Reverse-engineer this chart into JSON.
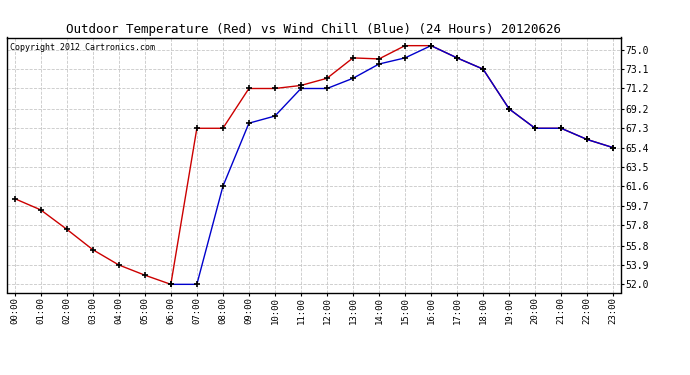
{
  "title": "Outdoor Temperature (Red) vs Wind Chill (Blue) (24 Hours) 20120626",
  "copyright": "Copyright 2012 Cartronics.com",
  "background_color": "#ffffff",
  "plot_bg_color": "#ffffff",
  "grid_color": "#c8c8c8",
  "red_color": "#cc0000",
  "blue_color": "#0000cc",
  "hours": [
    0,
    1,
    2,
    3,
    4,
    5,
    6,
    7,
    8,
    9,
    10,
    11,
    12,
    13,
    14,
    15,
    16,
    17,
    18,
    19,
    20,
    21,
    22,
    23
  ],
  "temp_red": [
    60.4,
    59.3,
    57.4,
    55.4,
    53.9,
    52.9,
    52.0,
    67.3,
    67.3,
    71.2,
    71.2,
    71.5,
    72.2,
    74.2,
    74.1,
    75.4,
    75.4,
    74.2,
    73.1,
    69.2,
    67.3,
    67.3,
    66.2,
    65.4
  ],
  "wind_chill": [
    null,
    null,
    null,
    null,
    null,
    null,
    52.0,
    52.0,
    61.6,
    67.8,
    68.5,
    71.2,
    71.2,
    72.2,
    73.6,
    74.2,
    75.4,
    74.2,
    73.1,
    69.2,
    67.3,
    67.3,
    66.2,
    65.4
  ],
  "yticks": [
    52.0,
    53.9,
    55.8,
    57.8,
    59.7,
    61.6,
    63.5,
    65.4,
    67.3,
    69.2,
    71.2,
    73.1,
    75.0
  ],
  "ylim": [
    51.2,
    76.2
  ],
  "xlim": [
    -0.3,
    23.3
  ]
}
